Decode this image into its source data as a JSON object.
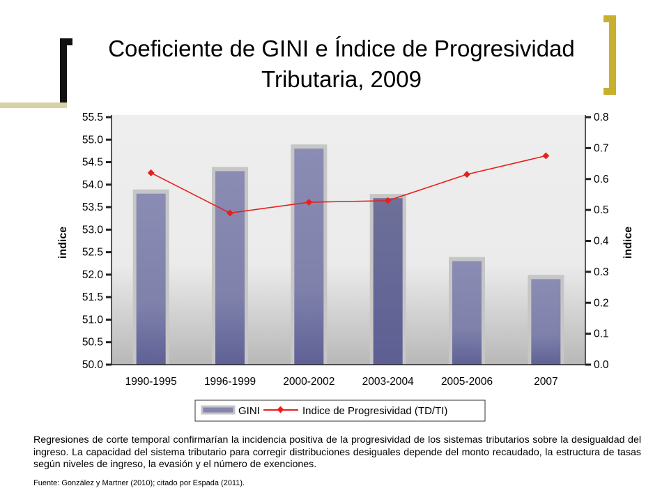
{
  "slide": {
    "title_line1": "Coeficiente de GINI e Índice de Progresividad",
    "title_line2": "Tributaria, 2009",
    "caption": "Regresiones de corte temporal confirmarían la incidencia positiva de la progresividad de los sistemas tributarios sobre la desigualdad del ingreso. La capacidad del sistema tributario para corregir distribuciones desiguales depende del monto recaudado, la estructura de tasas según niveles de ingreso, la evasión y el número de exenciones.",
    "source": "Fuente: González y Martner  (2010);  citado por Espada (2011).",
    "colors": {
      "bracket_dark": "#111111",
      "bracket_gold": "#c8b02e",
      "rule": "#d6d2a6"
    }
  },
  "chart_data": {
    "type": "bar",
    "categories": [
      "1990-1995",
      "1996-1999",
      "2000-2002",
      "2003-2004",
      "2005-2006",
      "2007"
    ],
    "series": [
      {
        "name": "GINI",
        "kind": "bar",
        "axis": "left",
        "values": [
          53.8,
          54.3,
          54.8,
          53.7,
          52.3,
          51.9
        ],
        "color": "#8486b0"
      },
      {
        "name": "Indice de Progresividad (TD/TI)",
        "kind": "line",
        "axis": "right",
        "values": [
          0.62,
          0.49,
          0.525,
          0.53,
          0.615,
          0.675
        ],
        "color": "#e8201c"
      }
    ],
    "left_axis": {
      "label": "indice",
      "range": [
        50.0,
        55.5
      ],
      "ticks": [
        "50.0",
        "50.5",
        "51.0",
        "51.5",
        "52.0",
        "52.5",
        "53.0",
        "53.5",
        "54.0",
        "54.5",
        "55.0",
        "55.5"
      ]
    },
    "right_axis": {
      "label": "indice",
      "range": [
        0.0,
        0.8
      ],
      "ticks": [
        "0.0",
        "0.1",
        "0.2",
        "0.3",
        "0.4",
        "0.5",
        "0.6",
        "0.7",
        "0.8"
      ]
    },
    "legend": {
      "placement": "bottom",
      "items": [
        "GINI",
        "Indice de Progresividad (TD/TI)"
      ]
    },
    "grid": false
  }
}
